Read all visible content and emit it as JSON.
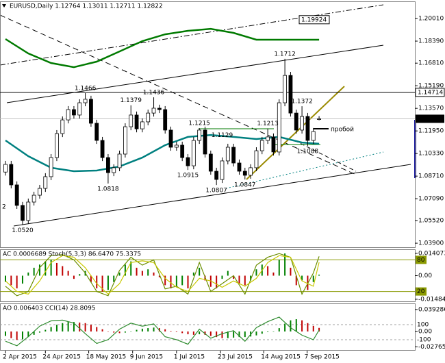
{
  "chart_data": [
    {
      "type": "candlestick",
      "header": "EURUSD,Daily  1.12764 1.13011 1.12711 1.12822",
      "open": [
        1.09,
        1.0955,
        1.0808,
        1.0661,
        1.0553,
        1.0685,
        1.0734,
        1.0783,
        1.0867,
        1.1004,
        1.1176,
        1.1274,
        1.1348,
        1.1309,
        1.1397,
        1.1422,
        1.125,
        1.1127,
        1.1004,
        1.0896,
        1.0931,
        1.1029,
        1.1225,
        1.1309,
        1.121,
        1.126,
        1.1323,
        1.1358,
        1.1348,
        1.1201,
        1.1078,
        1.1093,
        1.1004,
        1.0945,
        1.1127,
        1.1201,
        1.1029,
        1.0906,
        1.0847,
        1.098,
        1.1078,
        1.0965,
        1.0906,
        1.0877,
        1.0931,
        1.1053,
        1.1127,
        1.1152,
        1.1044,
        1.1397,
        1.1593,
        1.1323,
        1.1201,
        1.1299,
        1.1127,
        1.12764
      ],
      "high": [
        1.098,
        1.098,
        1.0833,
        1.0686,
        1.071,
        1.0759,
        1.0808,
        1.0892,
        1.1029,
        1.1201,
        1.1299,
        1.1373,
        1.1373,
        1.1422,
        1.1466,
        1.1447,
        1.1275,
        1.1152,
        1.1029,
        1.0956,
        1.1054,
        1.125,
        1.1379,
        1.1334,
        1.1285,
        1.1348,
        1.1436,
        1.1383,
        1.1373,
        1.1226,
        1.1118,
        1.1118,
        1.1029,
        1.1152,
        1.1215,
        1.1226,
        1.1054,
        1.0931,
        1.1005,
        1.1103,
        1.1103,
        1.099,
        1.0931,
        1.0956,
        1.1078,
        1.1152,
        1.1213,
        1.1177,
        1.1422,
        1.1712,
        1.1618,
        1.1348,
        1.1372,
        1.1324,
        1.1216,
        1.13011
      ],
      "low": [
        1.0875,
        1.0783,
        1.0636,
        1.052,
        1.0528,
        1.066,
        1.0709,
        1.0758,
        1.0842,
        1.0979,
        1.1151,
        1.1249,
        1.1284,
        1.1284,
        1.1372,
        1.1225,
        1.1102,
        1.0979,
        1.0818,
        1.0871,
        1.0906,
        1.1004,
        1.12,
        1.1185,
        1.1185,
        1.1235,
        1.1298,
        1.1323,
        1.1176,
        1.1053,
        1.1053,
        1.0979,
        1.0915,
        1.092,
        1.1102,
        1.1004,
        1.0881,
        1.0807,
        1.0822,
        1.0955,
        1.094,
        1.0881,
        1.0847,
        1.0852,
        1.0906,
        1.1028,
        1.1102,
        1.1019,
        1.1019,
        1.1372,
        1.1298,
        1.1176,
        1.1176,
        1.1088,
        1.1102,
        1.12711
      ],
      "close": [
        1.0955,
        1.0808,
        1.0661,
        1.0553,
        1.0685,
        1.0734,
        1.0783,
        1.0867,
        1.1004,
        1.1176,
        1.1274,
        1.1348,
        1.1309,
        1.1397,
        1.1422,
        1.125,
        1.1127,
        1.1004,
        1.0896,
        1.0931,
        1.1029,
        1.1225,
        1.1309,
        1.121,
        1.126,
        1.1323,
        1.1358,
        1.1348,
        1.1201,
        1.1078,
        1.1093,
        1.1004,
        1.0945,
        1.1127,
        1.1201,
        1.1029,
        1.0906,
        1.0847,
        1.098,
        1.1078,
        1.0965,
        1.0906,
        1.0877,
        1.0931,
        1.1053,
        1.1127,
        1.1152,
        1.1044,
        1.1397,
        1.1593,
        1.1323,
        1.1201,
        1.1299,
        1.1127,
        1.1191,
        1.12822
      ],
      "xlim": [
        -0.96,
        71.8
      ],
      "ylim": [
        1.0356,
        1.2124
      ],
      "yticks": [
        {
          "value": 1.2001,
          "label": "1.20010"
        },
        {
          "value": 1.1839,
          "label": "1.18390"
        },
        {
          "value": 1.1681,
          "label": "1.16810"
        },
        {
          "value": 1.1519,
          "label": "1.15190"
        },
        {
          "value": 1.1357,
          "label": "1.13570"
        },
        {
          "value": 1.1195,
          "label": "1.11950"
        },
        {
          "value": 1.1033,
          "label": "1.10330"
        },
        {
          "value": 1.0871,
          "label": "1.08710"
        },
        {
          "value": 1.0709,
          "label": "1.07090"
        },
        {
          "value": 1.0552,
          "label": "1.05520"
        },
        {
          "value": 1.039,
          "label": "1.03900"
        }
      ],
      "series": [
        {
          "color": "#007a00",
          "x": [
            0,
            4,
            8,
            12,
            16,
            20,
            24,
            28,
            32,
            36,
            40,
            44,
            48,
            52,
            55
          ],
          "values": [
            1.1854,
            1.1751,
            1.1682,
            1.1652,
            1.1692,
            1.1765,
            1.1839,
            1.1888,
            1.1913,
            1.1927,
            1.1898,
            1.1849,
            1.1849,
            1.1849,
            1.1849
          ]
        },
        {
          "color": "#008080",
          "x": [
            0,
            4,
            8,
            12,
            16,
            20,
            24,
            28,
            32,
            36,
            40,
            44,
            48,
            52,
            55
          ],
          "values": [
            1.1127,
            1.1014,
            1.0931,
            1.0906,
            1.0911,
            1.094,
            1.1004,
            1.1093,
            1.1152,
            1.1166,
            1.1152,
            1.1137,
            1.1152,
            1.1112,
            1.1103
          ]
        }
      ],
      "levels": [
        1.14714
      ],
      "callouts": [
        1.19924
      ],
      "annotations": [
        {
          "x": 3,
          "value": 1.052,
          "label": "1.0520"
        },
        {
          "x": 14,
          "value": 1.1466
        },
        {
          "x": 18,
          "value": 1.0818
        },
        {
          "x": 22,
          "value": 1.1379
        },
        {
          "x": 26,
          "value": 1.1436
        },
        {
          "x": 32,
          "value": 1.0915
        },
        {
          "x": 34,
          "value": 1.1215
        },
        {
          "x": 37,
          "value": 1.0807
        },
        {
          "x": 38,
          "value": 1.1129
        },
        {
          "x": 42,
          "value": 1.0847
        },
        {
          "x": 46,
          "value": 1.1213
        },
        {
          "x": 49,
          "value": 1.1712
        },
        {
          "x": 52,
          "value": 1.1372
        },
        {
          "x": 53,
          "value": 1.1088
        }
      ],
      "annotation_text": "пробой",
      "side_text": "2"
    },
    {
      "type": "bar",
      "header": "AC 0.0006689  Stoch(5,3,3) 86.6470 75.3375",
      "values": [
        -0.004,
        -0.006,
        -0.008,
        -0.005,
        0.002,
        0.005,
        0.007,
        0.009,
        0.01,
        0.008,
        0.006,
        0.003,
        -0.002,
        0.001,
        0.003,
        -0.004,
        -0.008,
        -0.01,
        -0.009,
        -0.004,
        0.002,
        0.007,
        0.009,
        0.005,
        0.003,
        0.004,
        0.002,
        -0.001,
        -0.006,
        -0.008,
        -0.007,
        -0.006,
        -0.008,
        0.002,
        0.005,
        -0.003,
        -0.007,
        -0.008,
        -0.002,
        0.003,
        -0.002,
        -0.005,
        -0.006,
        -0.003,
        0.004,
        0.007,
        0.006,
        0.002,
        0.01,
        0.014,
        0.005,
        -0.006,
        -0.003,
        -0.009,
        -0.004,
        0.0006689
      ],
      "up_color": "#008000",
      "down_color": "#c00000",
      "xlim": [
        -0.96,
        71.8
      ],
      "ylim": [
        -0.0166,
        0.0166
      ],
      "yticks": [
        0.014073,
        {
          "value": 0,
          "label": "0.00"
        },
        -0.014846
      ],
      "y2lim": [
        0,
        100
      ],
      "y2ticks": [
        80,
        20
      ],
      "level_color": "#8a9a00",
      "series": [
        {
          "color": "#6b8e00",
          "axis": "y2",
          "x": [
            0,
            2,
            4,
            6,
            8,
            10,
            12,
            14,
            16,
            18,
            20,
            22,
            24,
            26,
            28,
            30,
            32,
            34,
            36,
            38,
            40,
            42,
            44,
            46,
            48,
            50,
            52,
            54,
            55
          ],
          "values": [
            30,
            12,
            20,
            65,
            88,
            90,
            80,
            55,
            20,
            12,
            60,
            85,
            70,
            80,
            25,
            30,
            15,
            75,
            20,
            35,
            50,
            15,
            70,
            85,
            92,
            85,
            15,
            55,
            86.647
          ]
        },
        {
          "color": "#c8c800",
          "axis": "y2",
          "x": [
            0,
            2,
            4,
            6,
            8,
            10,
            12,
            14,
            16,
            18,
            20,
            22,
            24,
            26,
            28,
            30,
            32,
            34,
            36,
            38,
            40,
            42,
            44,
            46,
            48,
            50,
            52,
            54,
            55
          ],
          "values": [
            40,
            20,
            15,
            40,
            75,
            88,
            85,
            65,
            35,
            15,
            35,
            75,
            78,
            75,
            45,
            28,
            20,
            45,
            40,
            28,
            40,
            30,
            45,
            75,
            88,
            85,
            40,
            30,
            75.3375
          ]
        }
      ]
    },
    {
      "type": "bar",
      "header": "AO 0.006403  CCI(14) 28.8095",
      "values": [
        -0.008,
        -0.012,
        -0.015,
        -0.014,
        -0.01,
        -0.006,
        -0.002,
        0.003,
        0.008,
        0.012,
        0.015,
        0.017,
        0.017,
        0.016,
        0.015,
        0.012,
        0.008,
        0.004,
        0,
        -0.002,
        -0.003,
        -0.002,
        0,
        0.003,
        0.005,
        0.006,
        0.007,
        0.006,
        0.004,
        0.001,
        -0.001,
        -0.003,
        -0.005,
        -0.006,
        -0.005,
        -0.006,
        -0.008,
        -0.01,
        -0.012,
        -0.012,
        -0.011,
        -0.01,
        -0.01,
        -0.009,
        -0.007,
        -0.004,
        -0.001,
        0,
        0.006,
        0.014,
        0.02,
        0.022,
        0.02,
        0.015,
        0.01,
        0.006403
      ],
      "up_color": "#008000",
      "down_color": "#c00000",
      "xlim": [
        -0.96,
        71.8
      ],
      "ylim": [
        -0.0344,
        0.0503
      ],
      "yticks": [
        0.039286,
        {
          "value": 0,
          "label": "0.00"
        },
        -0.027656
      ],
      "y2lim": [
        -245,
        382
      ],
      "y2ticks": [
        100,
        -100
      ],
      "series": [
        {
          "color": "#2e8b2e",
          "axis": "y2",
          "x": [
            0,
            2,
            4,
            6,
            8,
            10,
            12,
            14,
            16,
            18,
            20,
            22,
            24,
            26,
            28,
            30,
            32,
            34,
            36,
            38,
            40,
            42,
            44,
            46,
            48,
            50,
            52,
            54,
            55
          ],
          "values": [
            -120,
            -180,
            -60,
            80,
            150,
            160,
            120,
            -20,
            -150,
            -100,
            40,
            120,
            80,
            110,
            -60,
            -100,
            -160,
            40,
            -80,
            -20,
            20,
            -120,
            60,
            140,
            200,
            60,
            -40,
            -100,
            28.8095
          ]
        }
      ],
      "xticks": [
        {
          "value": 0,
          "label": "2 Apr 2015"
        },
        {
          "value": 7,
          "label": "24 Apr 2015"
        },
        {
          "value": 14.6,
          "label": "18 May 2015"
        },
        {
          "value": 22.3,
          "label": "9 Jun 2015"
        },
        {
          "value": 30,
          "label": "1 Jul 2015"
        },
        {
          "value": 37.7,
          "label": "23 Jul 2015"
        },
        {
          "value": 45.3,
          "label": "14 Aug 2015"
        },
        {
          "value": 52.9,
          "label": "7 Sep 2015"
        }
      ]
    }
  ]
}
